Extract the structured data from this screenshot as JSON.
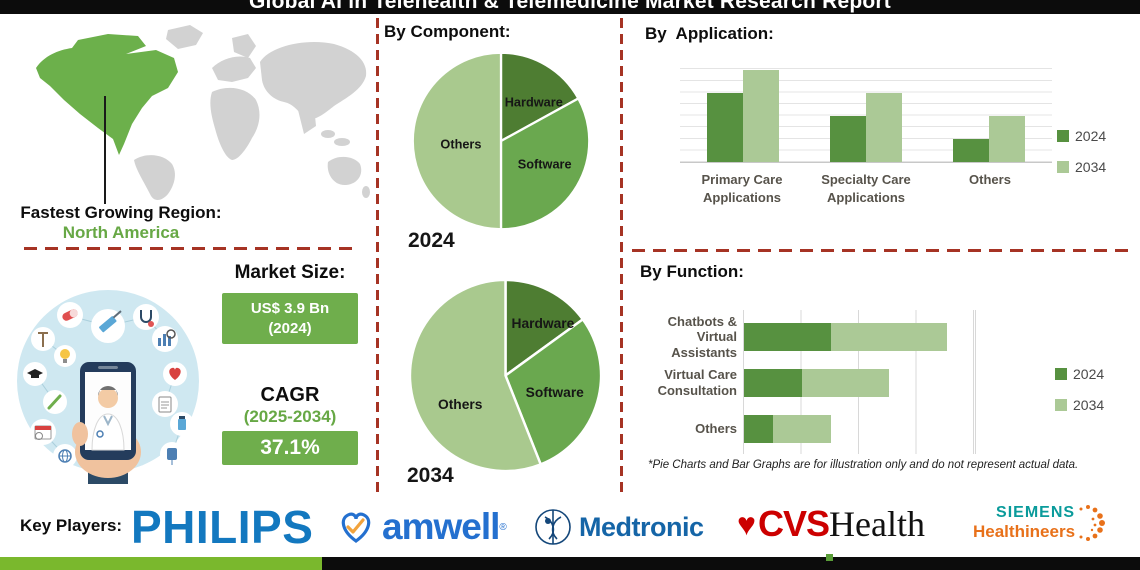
{
  "title": "Global AI in Telehealth & Telemedicine Market Research Report",
  "region": {
    "label": "Fastest Growing Region:",
    "value": "North America"
  },
  "market": {
    "heading": "Market Size:",
    "size_value": "US$ 3.9 Bn",
    "size_year": "(2024)",
    "cagr_label": "CAGR",
    "cagr_period": "(2025-2034)",
    "cagr_value": "37.1%"
  },
  "sections": {
    "component": "By Component:",
    "application": "By  Application:",
    "function": "By Function:"
  },
  "pie_years": {
    "first": "2024",
    "second": "2034"
  },
  "legend": {
    "y2024": "2024",
    "y2034": "2034"
  },
  "footnote": "*Pie Charts and Bar Graphs are for illustration only and do not represent actual data.",
  "key_players": {
    "label": "Key Players:",
    "philips": "PHILIPS",
    "amwell": "amwell",
    "medtronic": "Medtronic",
    "cvs_red": "CVS",
    "cvs_black": "Health",
    "siemens_top": "SIEMENS",
    "siemens_bottom": "Healthineers"
  },
  "colors": {
    "pie_dark_green": "#4e7d32",
    "pie_mid_green": "#6aa84f",
    "pie_light_green": "#a9c98e",
    "bar_2024": "#579140",
    "bar_2034": "#abc996",
    "value_box_green": "#6fae4c",
    "accent_text_green": "#67a845",
    "divider_red": "#a63324",
    "map_highlight_green": "#6cb04b",
    "bottom_bar_green": "#7ab82d"
  },
  "chart_data": [
    {
      "type": "pie",
      "title": "By Component — 2024",
      "labels": [
        "Hardware",
        "Software",
        "Others"
      ],
      "values": [
        17,
        33,
        50
      ],
      "colors": [
        "#4e7d32",
        "#6aa84f",
        "#a9c98e"
      ],
      "label_pos": [
        [
          136,
          62
        ],
        [
          148,
          130
        ],
        [
          56,
          108
        ]
      ],
      "note": "illustration only, not actual data"
    },
    {
      "type": "pie",
      "title": "By Component — 2034",
      "labels": [
        "Hardware",
        "Software",
        "Others"
      ],
      "values": [
        15,
        29,
        56
      ],
      "colors": [
        "#4e7d32",
        "#6aa84f",
        "#a9c98e"
      ],
      "label_pos": [
        [
          138,
          52
        ],
        [
          150,
          122
        ],
        [
          54,
          134
        ]
      ],
      "note": "illustration only, not actual data"
    },
    {
      "type": "bar",
      "title": "By Application",
      "categories": [
        [
          "Primary Care",
          "Applications"
        ],
        [
          "Specialty Care",
          "Applications"
        ],
        [
          "Others",
          ""
        ]
      ],
      "series": [
        {
          "name": "2024",
          "values": [
            6,
            4,
            2
          ]
        },
        {
          "name": "2034",
          "values": [
            8,
            6,
            4
          ]
        }
      ],
      "ylim": [
        0,
        9
      ],
      "grid": true,
      "legend_position": "right",
      "note": "illustration only, not actual data"
    },
    {
      "type": "bar",
      "orientation": "horizontal",
      "stacked": true,
      "title": "By Function",
      "categories": [
        [
          "Chatbots &",
          "Virtual Assistants"
        ],
        [
          "Virtual Care",
          "Consultation"
        ],
        [
          "Others",
          ""
        ]
      ],
      "series": [
        {
          "name": "2024",
          "values": [
            1.5,
            1,
            0.5
          ]
        },
        {
          "name": "2034",
          "values": [
            2,
            1.5,
            1
          ]
        }
      ],
      "xlim": [
        0,
        4
      ],
      "grid": true,
      "legend_position": "right",
      "note": "illustration only, not actual data"
    }
  ]
}
